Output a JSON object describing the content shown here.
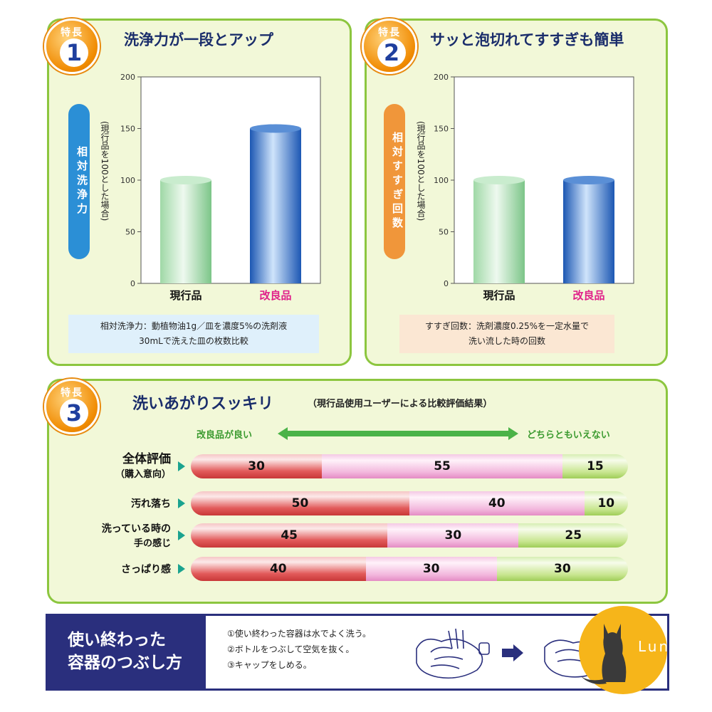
{
  "feature_label": "特長",
  "features": [
    {
      "number": "1",
      "title": "洗浄力が一段とアップ",
      "side_label": "相対洗浄力",
      "axis_note": "(現行品を100とした場合)",
      "note_line1": "相対洗浄力：動植物油1g／皿を濃度5%の洗剤液",
      "note_line2": "30mLで洗えた皿の枚数比較"
    },
    {
      "number": "2",
      "title": "サッと泡切れてすすぎも簡単",
      "side_label": "相対すすぎ回数",
      "axis_note": "(現行品を100とした場合)",
      "note_line1": "すすぎ回数：洗剤濃度0.25%を一定水量で",
      "note_line2": "洗い流した時の回数"
    },
    {
      "number": "3",
      "title": "洗いあがりスッキリ",
      "subtitle": "（現行品使用ユーザーによる比較評価結果）",
      "scale_left": "改良品が良い",
      "scale_right": "どちらともいえない"
    }
  ],
  "chart_data": [
    {
      "type": "bar",
      "categories": [
        "現行品",
        "改良品"
      ],
      "values": [
        100,
        150
      ],
      "ylabel": "相対洗浄力",
      "yticks": [
        0,
        50,
        100,
        150,
        200
      ],
      "ylim": [
        0,
        200
      ],
      "category_colors": [
        "#8fd19a",
        "#2f6fc7"
      ],
      "highlight_category_color": "#e0218a",
      "grid": false
    },
    {
      "type": "bar",
      "categories": [
        "現行品",
        "改良品"
      ],
      "values": [
        100,
        100
      ],
      "ylabel": "相対すすぎ回数",
      "yticks": [
        0,
        50,
        100,
        150,
        200
      ],
      "ylim": [
        0,
        200
      ],
      "category_colors": [
        "#8fd19a",
        "#2f6fc7"
      ],
      "highlight_category_color": "#e0218a",
      "grid": false
    },
    {
      "type": "bar",
      "orientation": "horizontal",
      "stacked": true,
      "categories": [
        "全体評価",
        "汚れ落ち",
        "洗っている時の手の感じ",
        "さっぱり感"
      ],
      "category_lines": [
        [
          "全体評価",
          "（購入意向）"
        ],
        [
          "汚れ落ち",
          ""
        ],
        [
          "洗っている時の",
          "手の感じ"
        ],
        [
          "さっぱり感",
          ""
        ]
      ],
      "series": [
        {
          "values": [
            30,
            50,
            45,
            40
          ],
          "color": "#d94a4a"
        },
        {
          "values": [
            55,
            40,
            30,
            30
          ],
          "color": "#f2b6dc"
        },
        {
          "values": [
            15,
            10,
            25,
            30
          ],
          "color": "#b7dd7a"
        }
      ],
      "xlim": [
        0,
        100
      ]
    }
  ],
  "disposal": {
    "title_line1": "使い終わった",
    "title_line2": "容器のつぶし方",
    "steps": [
      "①使い終わった容器は水でよく洗う。",
      "②ボトルをつぶして空気を抜く。",
      "③キャップをしめる。"
    ]
  },
  "watermark": "Luna"
}
